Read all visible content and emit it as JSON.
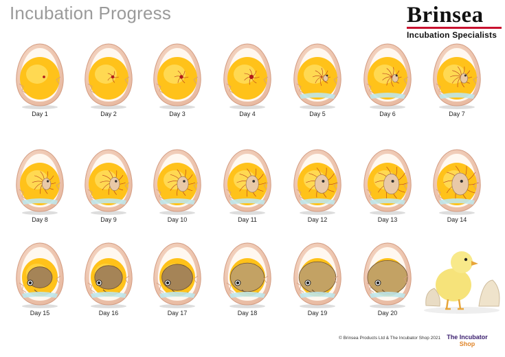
{
  "title": "Incubation Progress",
  "brand": {
    "name": "Brinsea",
    "tagline": "Incubation Specialists"
  },
  "days": [
    {
      "label": "Day 1",
      "stage": 1
    },
    {
      "label": "Day 2",
      "stage": 2
    },
    {
      "label": "Day 3",
      "stage": 3
    },
    {
      "label": "Day 4",
      "stage": 4
    },
    {
      "label": "Day 5",
      "stage": 5
    },
    {
      "label": "Day 6",
      "stage": 6
    },
    {
      "label": "Day 7",
      "stage": 7
    },
    {
      "label": "Day 8",
      "stage": 8
    },
    {
      "label": "Day 9",
      "stage": 9
    },
    {
      "label": "Day 10",
      "stage": 10
    },
    {
      "label": "Day 11",
      "stage": 11
    },
    {
      "label": "Day 12",
      "stage": 12
    },
    {
      "label": "Day 13",
      "stage": 13
    },
    {
      "label": "Day 14",
      "stage": 14
    },
    {
      "label": "Day 15",
      "stage": 15
    },
    {
      "label": "Day 16",
      "stage": 16
    },
    {
      "label": "Day 17",
      "stage": 17
    },
    {
      "label": "Day 18",
      "stage": 18
    },
    {
      "label": "Day 19",
      "stage": 19
    },
    {
      "label": "Day 20",
      "stage": 20
    }
  ],
  "copyright": "© Brinsea Products Ltd & The Incubator Shop 2021",
  "shop_logo": {
    "line1": "The Incubator",
    "line2": "Shop"
  },
  "colors": {
    "shell": "#e8b9a0",
    "yolk": "#ffc21a",
    "embryo": "#8a6a3a",
    "brand_red": "#c8102e"
  }
}
